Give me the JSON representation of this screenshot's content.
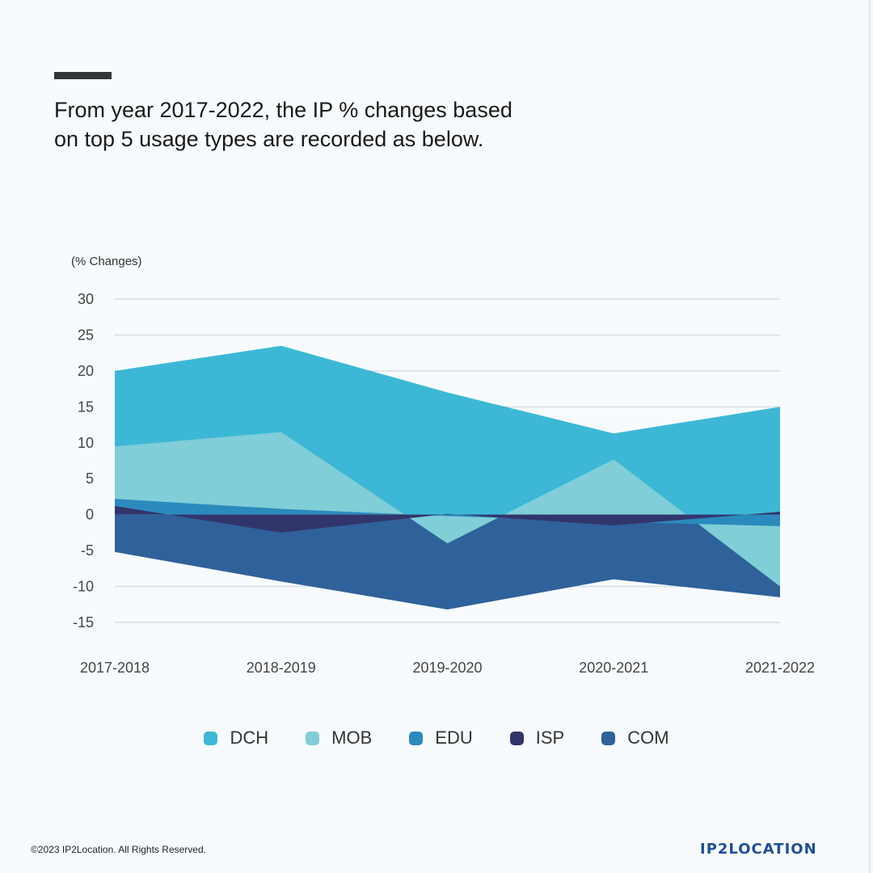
{
  "headline": "From year 2017-2022, the IP % changes based on top 5 usage types are recorded as below.",
  "footer": {
    "copyright": "©2023 IP2Location. All Rights Reserved.",
    "logo": "IP2LOCATION"
  },
  "chart_data": {
    "type": "area",
    "ylabel": "(% Changes)",
    "ylim": [
      -15,
      30
    ],
    "yticks": [
      30,
      25,
      20,
      15,
      10,
      5,
      0,
      -5,
      -10,
      -15
    ],
    "categories": [
      "2017-2018",
      "2018-2019",
      "2019-2020",
      "2020-2021",
      "2021-2022"
    ],
    "grid": true,
    "legend_position": "bottom",
    "series": [
      {
        "name": "DCH",
        "color": "#3cb8d6",
        "values": [
          20,
          23.5,
          17,
          11.3,
          15
        ]
      },
      {
        "name": "MOB",
        "color": "#80ced7",
        "values": [
          9.5,
          11.5,
          -4,
          7.7,
          -10
        ]
      },
      {
        "name": "EDU",
        "color": "#2b8abd",
        "values": [
          2.2,
          0.8,
          -0.2,
          -1,
          -1.6
        ]
      },
      {
        "name": "ISP",
        "color": "#32356b",
        "values": [
          1.2,
          -2.5,
          0.1,
          -1.5,
          0.4
        ]
      },
      {
        "name": "COM",
        "color": "#2f619a",
        "values": [
          -5.2,
          -9.3,
          -13.2,
          -9,
          -11.5
        ]
      }
    ]
  }
}
